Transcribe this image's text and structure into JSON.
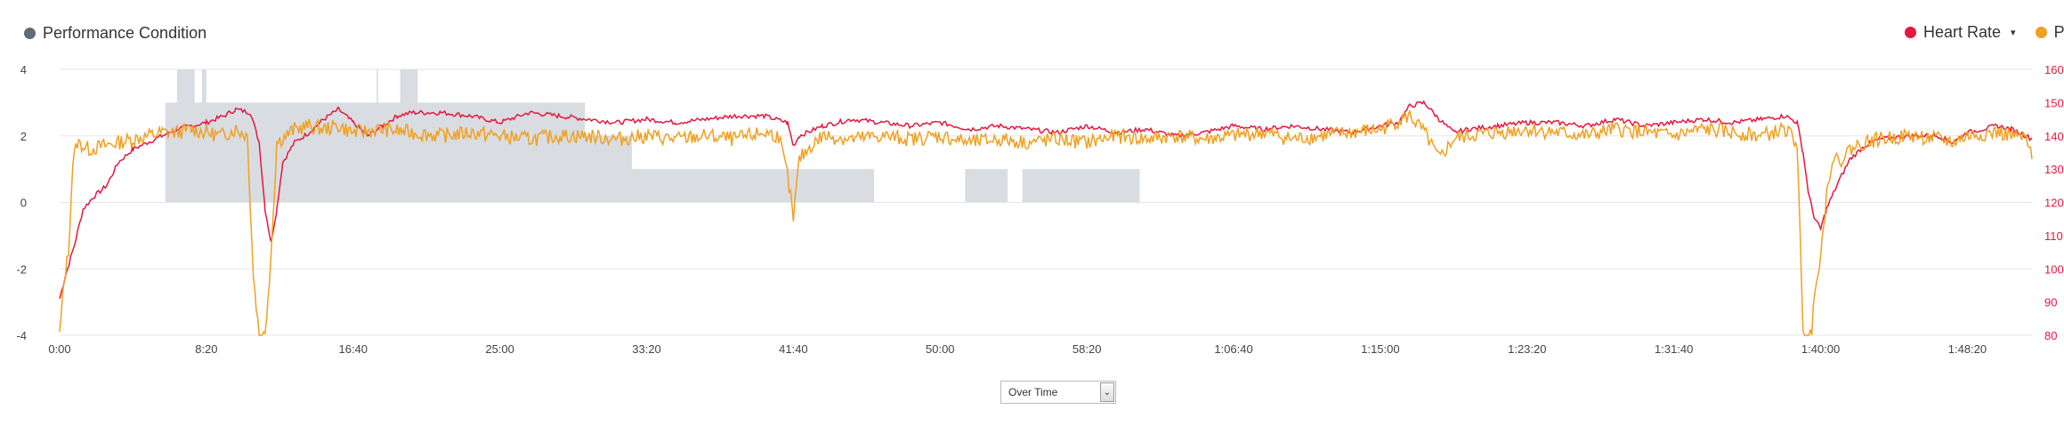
{
  "legend": {
    "performance_condition": "Performance Condition",
    "heart_rate": "Heart Rate",
    "power": "Pow"
  },
  "colors": {
    "performance": "#d9dde2",
    "performance_dot": "#5f6b7a",
    "heart_rate": "#e5173f",
    "power": "#f0a020",
    "grid": "#e6e6e6"
  },
  "selector": {
    "value": "Over Time"
  },
  "chart_data": {
    "type": "line",
    "x_unit": "elapsed seconds",
    "x_ticks": [
      "0:00",
      "8:20",
      "16:40",
      "25:00",
      "33:20",
      "41:40",
      "50:00",
      "58:20",
      "1:06:40",
      "1:15:00",
      "1:23:20",
      "1:31:40",
      "1:40:00",
      "1:48:20"
    ],
    "xlim": [
      0,
      6720
    ],
    "y_left": {
      "label": "",
      "ticks": [
        "4",
        "2",
        "0",
        "-2",
        "-4"
      ],
      "range": [
        -4,
        4
      ]
    },
    "y_right": {
      "label": "",
      "ticks": [
        "160",
        "150",
        "140",
        "130",
        "120",
        "110",
        "100",
        "90",
        "80"
      ],
      "range": [
        80,
        160
      ]
    },
    "series": [
      {
        "name": "Performance Condition",
        "type": "step-area",
        "axis": "left",
        "points": [
          [
            0,
            0
          ],
          [
            360,
            0
          ],
          [
            360,
            3
          ],
          [
            400,
            3
          ],
          [
            400,
            4
          ],
          [
            460,
            4
          ],
          [
            460,
            3
          ],
          [
            485,
            3
          ],
          [
            485,
            4
          ],
          [
            500,
            4
          ],
          [
            500,
            3
          ],
          [
            1080,
            3
          ],
          [
            1080,
            4
          ],
          [
            1085,
            4
          ],
          [
            1085,
            3
          ],
          [
            1160,
            3
          ],
          [
            1160,
            4
          ],
          [
            1220,
            4
          ],
          [
            1220,
            3
          ],
          [
            1790,
            3
          ],
          [
            1790,
            2
          ],
          [
            1950,
            2
          ],
          [
            1950,
            1
          ],
          [
            2775,
            1
          ],
          [
            2775,
            0
          ],
          [
            3085,
            0
          ],
          [
            3085,
            1
          ],
          [
            3230,
            1
          ],
          [
            3230,
            0
          ],
          [
            3280,
            0
          ],
          [
            3280,
            1
          ],
          [
            3680,
            1
          ],
          [
            3680,
            0
          ],
          [
            6720,
            0
          ]
        ]
      },
      {
        "name": "Heart Rate",
        "axis": "right",
        "points": [
          [
            0,
            91
          ],
          [
            20,
            98
          ],
          [
            50,
            107
          ],
          [
            80,
            118
          ],
          [
            120,
            122
          ],
          [
            160,
            125
          ],
          [
            200,
            132
          ],
          [
            250,
            136
          ],
          [
            300,
            138
          ],
          [
            350,
            140
          ],
          [
            400,
            142
          ],
          [
            450,
            143
          ],
          [
            500,
            144
          ],
          [
            560,
            146
          ],
          [
            600,
            148
          ],
          [
            650,
            147
          ],
          [
            680,
            138
          ],
          [
            700,
            118
          ],
          [
            720,
            108
          ],
          [
            740,
            118
          ],
          [
            760,
            132
          ],
          [
            800,
            138
          ],
          [
            850,
            141
          ],
          [
            900,
            145
          ],
          [
            950,
            148
          ],
          [
            1000,
            144
          ],
          [
            1050,
            140
          ],
          [
            1100,
            143
          ],
          [
            1150,
            146
          ],
          [
            1200,
            147
          ],
          [
            1300,
            147
          ],
          [
            1400,
            146
          ],
          [
            1500,
            144
          ],
          [
            1600,
            147
          ],
          [
            1700,
            146
          ],
          [
            1800,
            145
          ],
          [
            1900,
            144
          ],
          [
            2000,
            145
          ],
          [
            2100,
            144
          ],
          [
            2200,
            145
          ],
          [
            2300,
            146
          ],
          [
            2400,
            146
          ],
          [
            2480,
            144
          ],
          [
            2500,
            137
          ],
          [
            2520,
            140
          ],
          [
            2600,
            143
          ],
          [
            2700,
            145
          ],
          [
            2800,
            144
          ],
          [
            2900,
            143
          ],
          [
            3000,
            144
          ],
          [
            3100,
            142
          ],
          [
            3200,
            143
          ],
          [
            3300,
            142
          ],
          [
            3400,
            141
          ],
          [
            3500,
            143
          ],
          [
            3600,
            141
          ],
          [
            3700,
            142
          ],
          [
            3800,
            140
          ],
          [
            3900,
            141
          ],
          [
            4000,
            143
          ],
          [
            4100,
            142
          ],
          [
            4200,
            143
          ],
          [
            4300,
            142
          ],
          [
            4400,
            141
          ],
          [
            4500,
            143
          ],
          [
            4560,
            144
          ],
          [
            4600,
            149
          ],
          [
            4650,
            150
          ],
          [
            4700,
            145
          ],
          [
            4750,
            141
          ],
          [
            4800,
            142
          ],
          [
            4900,
            143
          ],
          [
            5000,
            144
          ],
          [
            5100,
            144
          ],
          [
            5200,
            143
          ],
          [
            5300,
            145
          ],
          [
            5400,
            143
          ],
          [
            5500,
            144
          ],
          [
            5600,
            145
          ],
          [
            5700,
            144
          ],
          [
            5800,
            145
          ],
          [
            5880,
            146
          ],
          [
            5920,
            144
          ],
          [
            5940,
            135
          ],
          [
            5960,
            122
          ],
          [
            5980,
            115
          ],
          [
            6000,
            112
          ],
          [
            6020,
            118
          ],
          [
            6060,
            126
          ],
          [
            6100,
            133
          ],
          [
            6150,
            137
          ],
          [
            6200,
            139
          ],
          [
            6300,
            140
          ],
          [
            6400,
            140
          ],
          [
            6450,
            138
          ],
          [
            6500,
            141
          ],
          [
            6600,
            143
          ],
          [
            6650,
            142
          ],
          [
            6700,
            140
          ],
          [
            6720,
            139
          ]
        ]
      },
      {
        "name": "Power",
        "axis": "left",
        "points": [
          [
            0,
            -4
          ],
          [
            15,
            -2.4
          ],
          [
            30,
            -1.5
          ],
          [
            45,
            1.2
          ],
          [
            60,
            1.8
          ],
          [
            100,
            1.6
          ],
          [
            150,
            1.7
          ],
          [
            200,
            1.8
          ],
          [
            250,
            1.9
          ],
          [
            300,
            2.0
          ],
          [
            350,
            2.1
          ],
          [
            400,
            2.1
          ],
          [
            450,
            2.2
          ],
          [
            500,
            2.1
          ],
          [
            550,
            2.0
          ],
          [
            600,
            2.2
          ],
          [
            640,
            2.0
          ],
          [
            660,
            -2.2
          ],
          [
            680,
            -4
          ],
          [
            700,
            -4
          ],
          [
            720,
            -1.6
          ],
          [
            740,
            1.8
          ],
          [
            800,
            2.2
          ],
          [
            850,
            2.3
          ],
          [
            900,
            2.2
          ],
          [
            950,
            2.3
          ],
          [
            1000,
            2.1
          ],
          [
            1100,
            2.2
          ],
          [
            1200,
            2.1
          ],
          [
            1300,
            2.0
          ],
          [
            1400,
            2.1
          ],
          [
            1500,
            2.0
          ],
          [
            1600,
            1.9
          ],
          [
            1700,
            2.0
          ],
          [
            1800,
            2.0
          ],
          [
            1900,
            1.9
          ],
          [
            2000,
            2.0
          ],
          [
            2100,
            1.9
          ],
          [
            2200,
            2.0
          ],
          [
            2300,
            1.9
          ],
          [
            2400,
            2.1
          ],
          [
            2450,
            2.0
          ],
          [
            2480,
            0.8
          ],
          [
            2500,
            -0.5
          ],
          [
            2520,
            1.3
          ],
          [
            2560,
            1.7
          ],
          [
            2600,
            2.0
          ],
          [
            2700,
            1.9
          ],
          [
            2800,
            2.0
          ],
          [
            2900,
            1.9
          ],
          [
            3000,
            2.0
          ],
          [
            3100,
            1.8
          ],
          [
            3200,
            1.9
          ],
          [
            3300,
            1.8
          ],
          [
            3400,
            1.9
          ],
          [
            3500,
            1.8
          ],
          [
            3600,
            2.0
          ],
          [
            3700,
            1.9
          ],
          [
            3800,
            2.0
          ],
          [
            3900,
            1.9
          ],
          [
            4000,
            2.0
          ],
          [
            4100,
            2.1
          ],
          [
            4200,
            1.9
          ],
          [
            4300,
            2.0
          ],
          [
            4400,
            2.1
          ],
          [
            4500,
            2.2
          ],
          [
            4600,
            2.6
          ],
          [
            4650,
            2.1
          ],
          [
            4700,
            1.3
          ],
          [
            4750,
            1.9
          ],
          [
            4800,
            2.0
          ],
          [
            4900,
            2.1
          ],
          [
            5000,
            2.2
          ],
          [
            5100,
            2.1
          ],
          [
            5200,
            2.0
          ],
          [
            5300,
            2.2
          ],
          [
            5400,
            2.1
          ],
          [
            5500,
            2.0
          ],
          [
            5600,
            2.2
          ],
          [
            5700,
            2.1
          ],
          [
            5800,
            2.0
          ],
          [
            5880,
            2.2
          ],
          [
            5920,
            1.8
          ],
          [
            5940,
            -4
          ],
          [
            5970,
            -4
          ],
          [
            5980,
            -2.5
          ],
          [
            6000,
            -1.6
          ],
          [
            6020,
            0.2
          ],
          [
            6040,
            1.4
          ],
          [
            6060,
            1.2
          ],
          [
            6100,
            1.6
          ],
          [
            6150,
            1.8
          ],
          [
            6200,
            1.9
          ],
          [
            6300,
            2.0
          ],
          [
            6400,
            1.9
          ],
          [
            6450,
            1.8
          ],
          [
            6500,
            2.0
          ],
          [
            6600,
            2.1
          ],
          [
            6650,
            2.0
          ],
          [
            6700,
            1.9
          ],
          [
            6720,
            1.3
          ]
        ]
      }
    ]
  }
}
